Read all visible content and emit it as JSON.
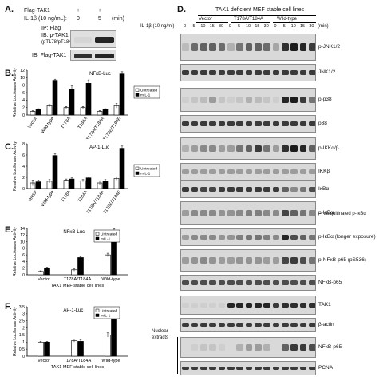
{
  "panelA": {
    "label": "A.",
    "row_construct": "Flag-TAK1",
    "construct_marks": [
      "+",
      "+"
    ],
    "row_treatment": "IL-1β (10 ng/mL):",
    "times": [
      "0",
      "5"
    ],
    "unit": "(min)",
    "ip_text": "IP: Flag",
    "ib_text": "IB: p-TAK1",
    "ib_sub": "(pT178/pT184)",
    "ib2_text": "IB: Flag-TAK1",
    "blot1_levels": [
      0.05,
      0.9
    ],
    "blot2_levels": [
      0.85,
      0.9
    ]
  },
  "panelD": {
    "label": "D.",
    "title": "TAK1 deficient MEF stable cell lines",
    "treatment": "IL-1β (10 ng/ml)",
    "unit": "(min)",
    "groups": [
      "Vector",
      "T178A/T184A",
      "Wild-type"
    ],
    "timepoints": [
      "0",
      "5",
      "10",
      "15",
      "30",
      "0",
      "5",
      "10",
      "15",
      "30",
      "0",
      "5",
      "10",
      "15",
      "30"
    ],
    "nuclear_label_1": "Nuclear",
    "nuclear_label_2": "extracts",
    "ubi_note": "ubiquitinated p-IκBα",
    "blots": [
      {
        "label": "p-JNK1/2",
        "levels": [
          0.15,
          0.55,
          0.6,
          0.6,
          0.55,
          0.2,
          0.5,
          0.6,
          0.6,
          0.55,
          0.25,
          0.85,
          0.95,
          0.9,
          0.8
        ]
      },
      {
        "label": "JNK1/2",
        "levels": [
          0.8,
          0.8,
          0.8,
          0.8,
          0.8,
          0.8,
          0.8,
          0.8,
          0.8,
          0.8,
          0.8,
          0.8,
          0.8,
          0.8,
          0.8
        ]
      },
      {
        "label": "p-p38",
        "levels": [
          0.05,
          0.1,
          0.15,
          0.3,
          0.1,
          0.05,
          0.1,
          0.2,
          0.15,
          0.1,
          0.05,
          0.9,
          0.95,
          0.8,
          0.5
        ]
      },
      {
        "label": "p38",
        "levels": [
          0.8,
          0.8,
          0.8,
          0.8,
          0.8,
          0.8,
          0.8,
          0.8,
          0.8,
          0.8,
          0.8,
          0.8,
          0.8,
          0.8,
          0.8
        ]
      },
      {
        "label": "p-IKKα/β",
        "levels": [
          0.2,
          0.3,
          0.4,
          0.4,
          0.3,
          0.3,
          0.5,
          0.6,
          0.8,
          0.5,
          0.3,
          0.85,
          0.95,
          0.9,
          0.6
        ]
      },
      {
        "label": "IKKβ",
        "levels": [
          0.3,
          0.3,
          0.3,
          0.3,
          0.3,
          0.3,
          0.3,
          0.3,
          0.3,
          0.3,
          0.3,
          0.3,
          0.3,
          0.3,
          0.3
        ]
      },
      {
        "label": "IκBα",
        "levels": [
          0.8,
          0.8,
          0.75,
          0.75,
          0.8,
          0.8,
          0.8,
          0.8,
          0.8,
          0.8,
          0.8,
          0.6,
          0.4,
          0.5,
          0.7
        ]
      },
      {
        "label": "p-IκBα",
        "levels": [
          0.3,
          0.4,
          0.4,
          0.4,
          0.35,
          0.35,
          0.4,
          0.45,
          0.45,
          0.4,
          0.4,
          0.75,
          0.6,
          0.5,
          0.4
        ]
      },
      {
        "label": "p-IκBα (longer exposure)",
        "levels": [
          0.3,
          0.4,
          0.4,
          0.4,
          0.35,
          0.35,
          0.45,
          0.5,
          0.5,
          0.45,
          0.4,
          0.9,
          0.7,
          0.6,
          0.5
        ]
      },
      {
        "label": "p-NFκB-p65 (pS536)",
        "levels": [
          0.3,
          0.35,
          0.4,
          0.35,
          0.3,
          0.3,
          0.35,
          0.35,
          0.35,
          0.3,
          0.3,
          0.75,
          0.8,
          0.7,
          0.5
        ]
      },
      {
        "label": "NFκB-p65",
        "levels": [
          0.7,
          0.7,
          0.7,
          0.7,
          0.7,
          0.7,
          0.7,
          0.7,
          0.7,
          0.7,
          0.7,
          0.7,
          0.7,
          0.7,
          0.7
        ]
      },
      {
        "label": "TAK1",
        "levels": [
          0.05,
          0.05,
          0.05,
          0.05,
          0.05,
          0.9,
          0.9,
          0.9,
          0.9,
          0.9,
          0.8,
          0.85,
          0.85,
          0.85,
          0.85
        ]
      },
      {
        "label": "β-actin",
        "levels": [
          0.8,
          0.8,
          0.8,
          0.8,
          0.8,
          0.8,
          0.8,
          0.8,
          0.8,
          0.8,
          0.8,
          0.8,
          0.8,
          0.8,
          0.8
        ]
      },
      {
        "label": "NFκB-p65",
        "levels": [
          0.0,
          0.05,
          0.1,
          0.1,
          0.05,
          0.0,
          0.2,
          0.3,
          0.3,
          0.2,
          0.0,
          0.6,
          0.8,
          0.8,
          0.7
        ]
      },
      {
        "label": "PCNA",
        "levels": [
          0.8,
          0.8,
          0.8,
          0.8,
          0.8,
          0.8,
          0.8,
          0.8,
          0.8,
          0.8,
          0.8,
          0.8,
          0.8,
          0.8,
          0.8
        ]
      }
    ]
  },
  "chart_data": [
    {
      "panel": "B.",
      "type": "bar",
      "title": "NFκB-Luc",
      "ylabel": "Relative Luciferase Activity",
      "ylim": [
        0,
        12
      ],
      "yticks": [
        "0",
        "2",
        "4",
        "6",
        "8",
        "10",
        "12"
      ],
      "categories": [
        "Vector",
        "Wild-type",
        "T178A",
        "T184A",
        "T178A/T184A",
        "T178E/T184E"
      ],
      "series": [
        {
          "name": "Untreated",
          "color": "#ffffff",
          "values": [
            1.0,
            2.5,
            2.0,
            2.0,
            1.0,
            2.5
          ],
          "errors": [
            0.2,
            0.3,
            0.3,
            0.3,
            0.2,
            0.6
          ]
        },
        {
          "name": "mIL-1",
          "color": "#000000",
          "values": [
            1.5,
            9.3,
            7.0,
            8.5,
            1.5,
            11.0
          ],
          "errors": [
            0.2,
            0.3,
            0.8,
            0.9,
            0.2,
            0.6
          ]
        }
      ],
      "legend_position": "right"
    },
    {
      "panel": "C.",
      "type": "bar",
      "title": "AP-1-Luc",
      "ylabel": "Relative Luciferase Activity",
      "ylim": [
        0,
        8
      ],
      "yticks": [
        "0",
        "2",
        "4",
        "6",
        "8"
      ],
      "categories": [
        "Vector",
        "Wild-type",
        "T178A",
        "T184A",
        "T178A/T184A",
        "T178E/T184E"
      ],
      "series": [
        {
          "name": "Untreated",
          "color": "#ffffff",
          "values": [
            1.0,
            1.3,
            1.5,
            1.4,
            1.0,
            1.8
          ],
          "errors": [
            0.5,
            0.3,
            0.2,
            0.2,
            0.4,
            0.3
          ]
        },
        {
          "name": "mIL-1",
          "color": "#000000",
          "values": [
            1.2,
            5.9,
            1.7,
            1.9,
            1.3,
            7.2
          ],
          "errors": [
            0.3,
            0.3,
            0.2,
            0.2,
            0.3,
            0.4
          ]
        }
      ],
      "legend_position": "right"
    },
    {
      "panel": "E.",
      "type": "bar",
      "title": "NFκB-Luc",
      "ylabel": "Relative Luciferase Activity",
      "xlabel": "TAK1 MEF stable cell lines",
      "ylim": [
        0,
        14
      ],
      "yticks": [
        "0",
        "2",
        "4",
        "6",
        "8",
        "10",
        "12",
        "14"
      ],
      "categories": [
        "Vector",
        "T178A/T184A",
        "Wild-type"
      ],
      "series": [
        {
          "name": "Untreated",
          "color": "#ffffff",
          "values": [
            1.0,
            1.5,
            6.0
          ],
          "errors": [
            0.2,
            0.4,
            0.5
          ]
        },
        {
          "name": "mIL-1",
          "color": "#000000",
          "values": [
            2.0,
            5.2,
            13.3
          ],
          "errors": [
            0.3,
            0.3,
            0.6
          ]
        }
      ],
      "legend_position": "top-right"
    },
    {
      "panel": "F.",
      "type": "bar",
      "title": "AP-1-Luc",
      "ylabel": "Relative Luciferase Activity",
      "xlabel": "TAK1 MEF stable cell lines",
      "ylim": [
        0,
        3.5
      ],
      "yticks": [
        "0",
        "0.5",
        "1",
        "1.5",
        "2",
        "2.5",
        "3",
        "3.5"
      ],
      "categories": [
        "Vector",
        "T178A/T184A",
        "Wild-type"
      ],
      "series": [
        {
          "name": "Untreated",
          "color": "#ffffff",
          "values": [
            1.0,
            1.1,
            1.5
          ],
          "errors": [
            0.05,
            0.1,
            0.15
          ]
        },
        {
          "name": "mIL-1",
          "color": "#000000",
          "values": [
            1.0,
            1.05,
            3.05
          ],
          "errors": [
            0.05,
            0.1,
            0.1
          ]
        }
      ],
      "legend_position": "top-right"
    }
  ]
}
